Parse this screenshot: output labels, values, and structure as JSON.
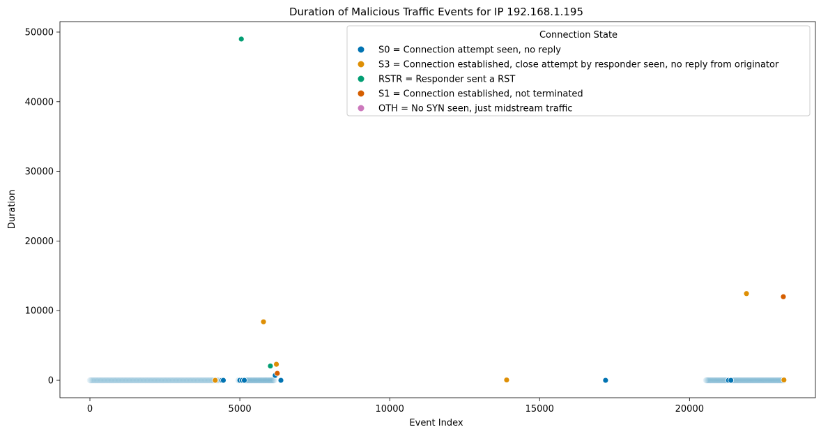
{
  "chart_data": {
    "type": "scatter",
    "title": "Duration of Malicious Traffic Events for IP 192.168.1.195",
    "xlabel": "Event Index",
    "ylabel": "Duration",
    "xlim": [
      -1000,
      24200
    ],
    "ylim": [
      -2500,
      51500
    ],
    "xticks": [
      0,
      5000,
      10000,
      15000,
      20000
    ],
    "yticks": [
      0,
      10000,
      20000,
      30000,
      40000,
      50000
    ],
    "grid": false,
    "legend": {
      "title": "Connection State",
      "placement": "top-right"
    },
    "series": [
      {
        "name": "S0 = Connection attempt seen, no reply",
        "color": "#0173b2",
        "points": [
          [
            4400,
            0
          ],
          [
            4450,
            0
          ],
          [
            5000,
            0
          ],
          [
            5080,
            0
          ],
          [
            5150,
            0
          ],
          [
            6180,
            700
          ],
          [
            6370,
            0
          ],
          [
            17200,
            0
          ],
          [
            21300,
            0
          ],
          [
            21380,
            0
          ]
        ]
      },
      {
        "name": "S3 = Connection established, close attempt by responder seen, no reply from originator",
        "color": "#de8f05",
        "points": [
          [
            4180,
            0
          ],
          [
            5790,
            8400
          ],
          [
            6220,
            2300
          ],
          [
            13900,
            50
          ],
          [
            21900,
            12450
          ],
          [
            23150,
            50
          ]
        ]
      },
      {
        "name": "RSTR = Responder sent a RST",
        "color": "#029e73",
        "points": [
          [
            5050,
            49000
          ],
          [
            6020,
            2050
          ]
        ]
      },
      {
        "name": "S1 = Connection established, not terminated",
        "color": "#d55e00",
        "points": [
          [
            6250,
            1000
          ],
          [
            23130,
            12000
          ]
        ]
      },
      {
        "name": "OTH = No SYN seen, just midstream traffic",
        "color": "#cc78bc",
        "points": []
      }
    ],
    "dense_bands": [
      {
        "state": "S0 = Connection attempt seen, no reply",
        "x_range": [
          0,
          4300
        ],
        "y": 0,
        "count": 150
      },
      {
        "state": "S0 = Connection attempt seen, no reply",
        "x_range": [
          4950,
          6150
        ],
        "y": 0,
        "count": 60
      },
      {
        "state": "S0 = Connection attempt seen, no reply",
        "x_range": [
          20550,
          23150
        ],
        "y": 0,
        "count": 120
      }
    ]
  }
}
